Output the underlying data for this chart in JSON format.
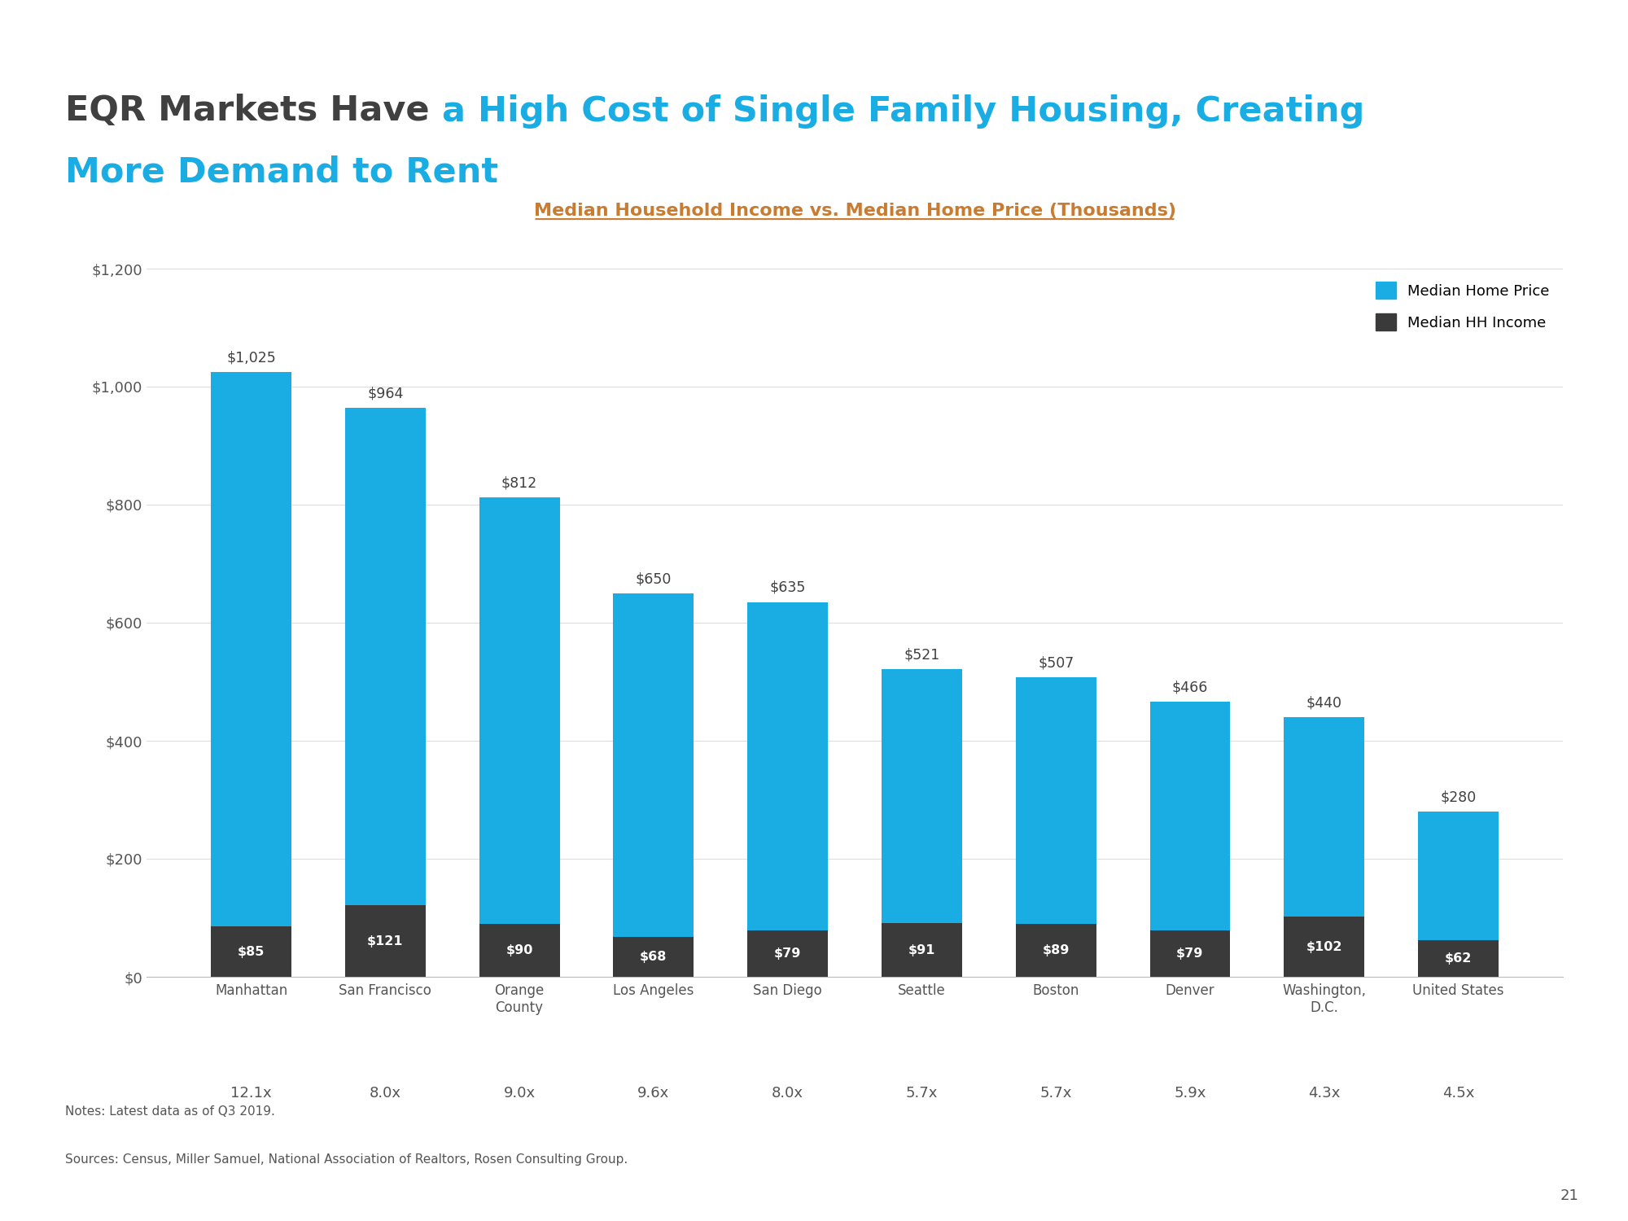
{
  "title_black": "EQR Markets Have ",
  "title_blue_line1": "a High Cost of Single Family Housing, Creating",
  "title_blue_line2": "More Demand to Rent",
  "chart_title": "Median Household Income vs. Median Home Price (Thousands)",
  "categories": [
    "Manhattan",
    "San Francisco",
    "Orange\nCounty",
    "Los Angeles",
    "San Diego",
    "Seattle",
    "Boston",
    "Denver",
    "Washington,\nD.C.",
    "United States"
  ],
  "home_prices": [
    1025,
    964,
    812,
    650,
    635,
    521,
    507,
    466,
    440,
    280
  ],
  "hh_incomes": [
    85,
    121,
    90,
    68,
    79,
    91,
    89,
    79,
    102,
    62
  ],
  "home_price_labels": [
    "$1,025",
    "$964",
    "$812",
    "$650",
    "$635",
    "$521",
    "$507",
    "$466",
    "$440",
    "$280"
  ],
  "hh_income_labels": [
    "$85",
    "$121",
    "$90",
    "$68",
    "$79",
    "$91",
    "$89",
    "$79",
    "$102",
    "$62"
  ],
  "ratios": [
    "12.1x",
    "8.0x",
    "9.0x",
    "9.6x",
    "8.0x",
    "5.7x",
    "5.7x",
    "5.9x",
    "4.3x",
    "4.5x"
  ],
  "bar_color_blue": "#1AADE3",
  "bar_color_dark": "#3A3A3A",
  "title_color_dark": "#404040",
  "title_color_blue": "#1AADE3",
  "chart_title_color": "#C97B30",
  "axis_label_color": "#555555",
  "notes": "Notes: Latest data as of Q3 2019.",
  "sources": "Sources: Census, Miller Samuel, National Association of Realtors, Rosen Consulting Group.",
  "page_number": "21",
  "ylim": [
    0,
    1200
  ],
  "yticks": [
    0,
    200,
    400,
    600,
    800,
    1000,
    1200
  ],
  "ytick_labels": [
    "$0",
    "$200",
    "$400",
    "$600",
    "$800",
    "$1,000",
    "$1,200"
  ],
  "legend_home_price": "Median Home Price",
  "legend_hh_income": "Median HH Income",
  "background_color": "#FFFFFF"
}
